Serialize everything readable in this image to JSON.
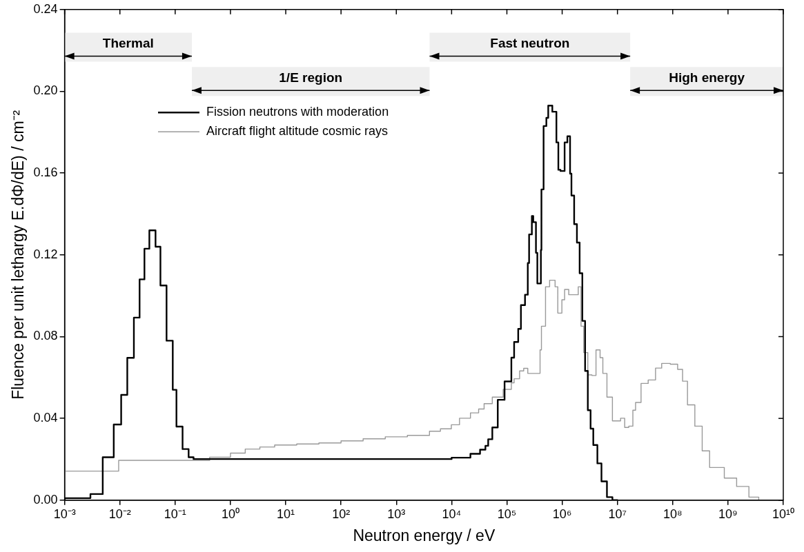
{
  "chart_data": {
    "type": "step",
    "xlabel": "Neutron energy / eV",
    "ylabel": "Fluence per unit lethargy E.dΦ/dE) / cm⁻²",
    "log": "x",
    "xlim": [
      0.001,
      10000000000
    ],
    "ylim": [
      0,
      0.24
    ],
    "xticks": [
      {
        "value": 0.001,
        "label": "10⁻³"
      },
      {
        "value": 0.01,
        "label": "10⁻²"
      },
      {
        "value": 0.1,
        "label": "10⁻¹"
      },
      {
        "value": 1,
        "label": "10⁰"
      },
      {
        "value": 10,
        "label": "10¹"
      },
      {
        "value": 100,
        "label": "10²"
      },
      {
        "value": 1000,
        "label": "10³"
      },
      {
        "value": 10000,
        "label": "10⁴"
      },
      {
        "value": 100000,
        "label": "10⁵"
      },
      {
        "value": 1000000,
        "label": "10⁶"
      },
      {
        "value": 10000000,
        "label": "10⁷"
      },
      {
        "value": 100000000,
        "label": "10⁸"
      },
      {
        "value": 1000000000,
        "label": "10⁹"
      },
      {
        "value": 10000000000,
        "label": "10¹⁰"
      }
    ],
    "yticks": [
      {
        "value": 0,
        "label": "0.00"
      },
      {
        "value": 0.04,
        "label": "0.04"
      },
      {
        "value": 0.08,
        "label": "0.08"
      },
      {
        "value": 0.12,
        "label": "0.12"
      },
      {
        "value": 0.16,
        "label": "0.16"
      },
      {
        "value": 0.2,
        "label": "0.20"
      },
      {
        "value": 0.24,
        "label": "0.24"
      }
    ],
    "legend": "top left",
    "grid": false,
    "bands": [
      {
        "axis": "x",
        "from": 0.001,
        "to": 0.2,
        "label": "Thermal"
      },
      {
        "axis": "x",
        "from": 0.2,
        "to": 4000,
        "label": "1/E region"
      },
      {
        "axis": "x",
        "from": 4000,
        "to": 17000000,
        "label": "Fast neutron"
      },
      {
        "axis": "x",
        "from": 17000000,
        "to": 10000000000,
        "label": "High energy"
      }
    ],
    "series": [
      {
        "name": "Fission neutrons with moderation",
        "color": "#000000",
        "x": [
          0.001,
          0.00293,
          0.00489,
          0.00774,
          0.01054,
          0.0136,
          0.0179,
          0.0227,
          0.0278,
          0.0341,
          0.0441,
          0.0541,
          0.0698,
          0.0904,
          0.1054,
          0.136,
          0.175,
          0.215,
          10000,
          21900,
          32700,
          40900,
          45900,
          54500,
          68400,
          90800,
          120500,
          135200,
          160300,
          179500,
          212800,
          238800,
          252300,
          283100,
          299900,
          335700,
          355600,
          375800,
          412100,
          421700,
          461300,
          517600,
          559800,
          663700,
          787000,
          853100,
          933300,
          1107000,
          1242000,
          1390000,
          1472000,
          1648000,
          1849000,
          2070000,
          2317000,
          2600000,
          2911000,
          3266000,
          3656000,
          4335000,
          5140000,
          6457000,
          8110000,
          10160000
        ],
        "values": [
          0,
          0.001,
          0.003,
          0.021,
          0.037,
          0.0515,
          0.0696,
          0.0893,
          0.108,
          0.123,
          0.132,
          0.124,
          0.105,
          0.078,
          0.054,
          0.036,
          0.025,
          0.021,
          0.0201,
          0.0208,
          0.0227,
          0.0247,
          0.0266,
          0.0298,
          0.0356,
          0.0491,
          0.0581,
          0.0697,
          0.0774,
          0.0838,
          0.0954,
          0.1005,
          0.116,
          0.13,
          0.139,
          0.136,
          0.121,
          0.106,
          0.106,
          0.1224,
          0.152,
          0.183,
          0.187,
          0.193,
          0.19,
          0.175,
          0.1616,
          0.161,
          0.175,
          0.178,
          0.1597,
          0.149,
          0.135,
          0.126,
          0.111,
          0.0877,
          0.0632,
          0.044,
          0.035,
          0.027,
          0.018,
          0.0092,
          0.0015,
          0
        ]
      },
      {
        "name": "Aircraft flight altitude cosmic rays",
        "color": "#999999",
        "x": [
          0.001,
          0.0095,
          0.42,
          1,
          1.85,
          3.4,
          6.3,
          15.8,
          39.8,
          100,
          251,
          631,
          1585,
          3981,
          6281,
          9886,
          13900,
          21930,
          30830,
          38730,
          54450,
          85700,
          120500,
          135200,
          169800,
          201400,
          238800,
          335700,
          398100,
          421700,
          500000,
          592900,
          744700,
          833700,
          988500,
          1107000,
          1315000,
          1472000,
          1954000,
          2193000,
          2455000,
          2911000,
          3451000,
          4093000,
          4853000,
          5445000,
          6457000,
          8110000,
          9616000,
          11400000,
          13520000,
          16030000,
          19010000,
          21280000,
          26730000,
          35970000,
          48870000,
          63100000,
          90360000,
          122700000,
          150700000,
          184900000,
          251200000,
          341200000,
          464500000,
          857000000,
          1432000000,
          2388000000,
          3597000000,
          4887000000,
          9036000000
        ],
        "values": [
          0,
          0.0142,
          0.0195,
          0.021,
          0.023,
          0.025,
          0.026,
          0.027,
          0.0275,
          0.028,
          0.029,
          0.03,
          0.031,
          0.0317,
          0.0337,
          0.0349,
          0.0369,
          0.0401,
          0.0427,
          0.0446,
          0.0472,
          0.0504,
          0.0542,
          0.0574,
          0.0594,
          0.0632,
          0.0645,
          0.062,
          0.062,
          0.0735,
          0.0851,
          0.1044,
          0.1076,
          0.1044,
          0.0915,
          0.098,
          0.1031,
          0.1005,
          0.1005,
          0.1044,
          0.0851,
          0.0722,
          0.0613,
          0.061,
          0.0735,
          0.0697,
          0.062,
          0.0504,
          0.0388,
          0.0388,
          0.0401,
          0.0356,
          0.0362,
          0.044,
          0.0478,
          0.0571,
          0.0588,
          0.0646,
          0.0669,
          0.0665,
          0.064,
          0.0582,
          0.0466,
          0.0362,
          0.0241,
          0.016,
          0.0108,
          0.0067,
          0.0015,
          0,
          0
        ]
      }
    ]
  }
}
